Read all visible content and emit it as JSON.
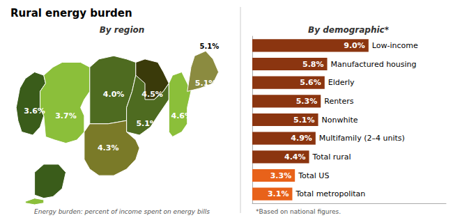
{
  "chart_data": [
    {
      "type": "map",
      "title": "Rural energy burden",
      "subtitle": "By region",
      "values": [
        3.6,
        3.7,
        4.0,
        4.5,
        5.1,
        4.3,
        4.6,
        5.1,
        null,
        null
      ],
      "value_labels": [
        "3.6%",
        "3.7%",
        "4.0%",
        "4.5%",
        "5.1%",
        "4.3%",
        "4.6%",
        "5.1%",
        null,
        null
      ],
      "colors": [
        "#3A5C1A",
        "#8BBF3A",
        "#4E6B20",
        "#3A3A0A",
        "#4E6B20",
        "#7A7A28",
        "#8BBF3A",
        "#8B8B40",
        "#3A5C1A",
        "#8BBF3A"
      ],
      "data_labels": true,
      "annotations": [
        "5.1%",
        "Energy burden: percent of income spent on energy bills"
      ]
    },
    {
      "type": "bar",
      "orientation": "horizontal",
      "subtitle": "By demographic*",
      "categories": [
        "Low-income",
        "Manufactured housing",
        "Elderly",
        "Renters",
        "Nonwhite",
        "Multifamily (2–4 units)",
        "Total rural",
        "Total US",
        "Total metropolitan"
      ],
      "values": [
        9.0,
        5.8,
        5.6,
        5.3,
        5.1,
        4.9,
        4.4,
        3.3,
        3.1
      ],
      "value_labels": [
        "9.0%",
        "5.8%",
        "5.6%",
        "5.3%",
        "5.1%",
        "4.9%",
        "4.4%",
        "3.3%",
        "3.1%"
      ],
      "colors": [
        "#8B3510",
        "#8B3510",
        "#8B3510",
        "#8B3510",
        "#8B3510",
        "#8B3510",
        "#8B3510",
        "#E8621A",
        "#E8621A"
      ],
      "xlim": [
        0,
        15
      ],
      "tick_labels": false,
      "grid": false,
      "data_labels": true,
      "annotations": [
        "*Based on national figures."
      ]
    }
  ]
}
